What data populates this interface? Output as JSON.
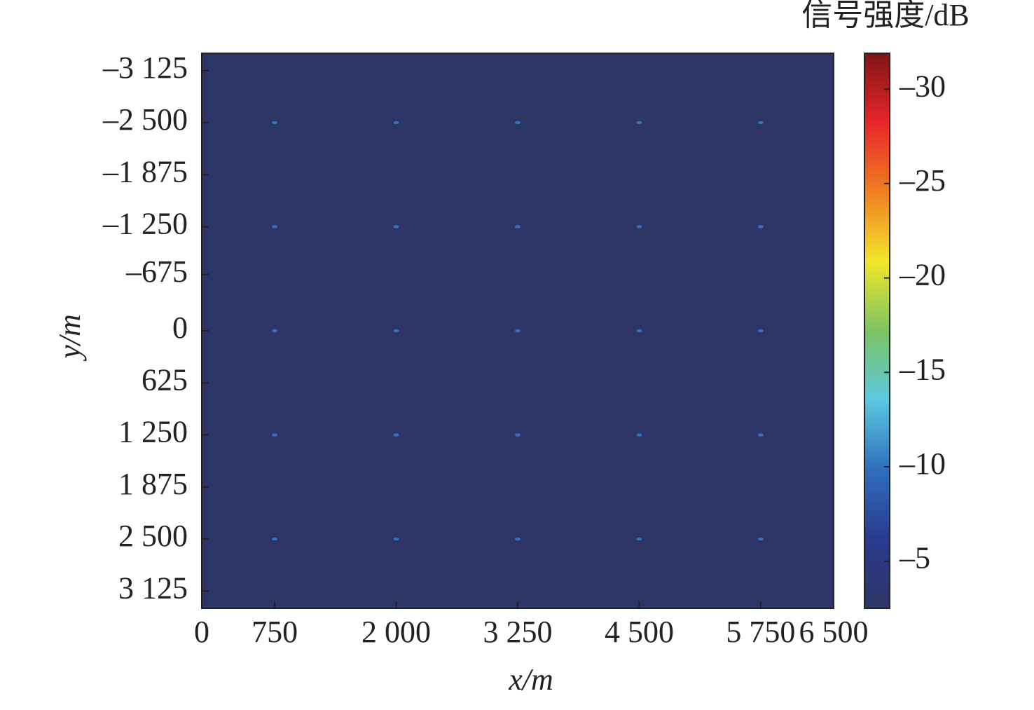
{
  "chart_data": {
    "type": "heatmap",
    "x_label": "x/m",
    "y_label": "y/m",
    "xlim": [
      0,
      6500
    ],
    "xticks": [
      0,
      750,
      {
        "value": 2000,
        "label": "2 000"
      },
      {
        "value": 3250,
        "label": "3 250"
      },
      {
        "value": 4500,
        "label": "4 500"
      },
      {
        "value": 5750,
        "label": "5 750"
      },
      {
        "value": 6500,
        "label": "6 500"
      }
    ],
    "ylim": [
      -3333,
      3333
    ],
    "y_reversed": true,
    "yticks": [
      {
        "value": -3125,
        "label": "–3 125"
      },
      {
        "value": -2500,
        "label": "–2 500"
      },
      {
        "value": -1875,
        "label": "–1 875"
      },
      {
        "value": -1250,
        "label": "–1 250"
      },
      {
        "value": -675,
        "label": "–675"
      },
      0,
      625,
      {
        "value": 1250,
        "label": "1 250"
      },
      {
        "value": 1875,
        "label": "1 875"
      },
      {
        "value": 2500,
        "label": "2 500"
      },
      {
        "value": 3125,
        "label": "3 125"
      }
    ],
    "background": -2.7,
    "x": [
      750,
      2000,
      3250,
      4500,
      5750
    ],
    "y": [
      -2500,
      -1250,
      0,
      1250,
      2500
    ],
    "z": [
      [
        -10,
        -10,
        -10,
        -10,
        -10
      ],
      [
        -10,
        -10,
        -10,
        -10,
        -10
      ],
      [
        -10,
        -10,
        -10,
        -10,
        -10
      ],
      [
        -10,
        -10,
        -10,
        -10,
        -10
      ],
      [
        -10,
        -10,
        -10,
        -10,
        -10
      ]
    ],
    "colorbar": {
      "label": "信号强度/dB",
      "lim": [
        -31.9,
        -2.5
      ],
      "reversed": true,
      "ticks": [
        {
          "value": -30,
          "label": "–30"
        },
        {
          "value": -25,
          "label": "–25"
        },
        {
          "value": -20,
          "label": "–20"
        },
        {
          "value": -15,
          "label": "–15"
        },
        {
          "value": -10,
          "label": "–10"
        },
        {
          "value": -5,
          "label": "–5"
        }
      ],
      "colormap": [
        "#7f1416",
        "#e8262a",
        "#f07f22",
        "#f2e62a",
        "#7cc462",
        "#5bc8e0",
        "#2f6fbe",
        "#2a3a8e",
        "#2d3564"
      ]
    }
  }
}
